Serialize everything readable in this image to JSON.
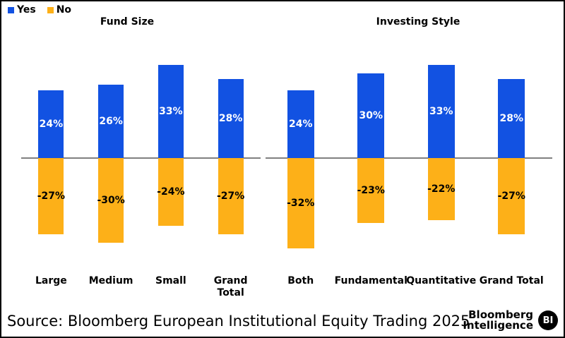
{
  "legend": {
    "items": [
      {
        "label": "Yes",
        "color": "#1252e2"
      },
      {
        "label": "No",
        "color": "#fdb018"
      }
    ]
  },
  "chart_data": {
    "type": "bar",
    "value_unit": "%",
    "zero_baseline": true,
    "grid": false,
    "legend_position": "top-left",
    "ylim": [
      -40,
      40
    ],
    "panels": [
      {
        "title": "Fund Size",
        "categories": [
          "Large",
          "Medium",
          "Small",
          "Grand Total"
        ],
        "series": [
          {
            "name": "Yes",
            "color": "#1252e2",
            "values": [
              24,
              26,
              33,
              28
            ]
          },
          {
            "name": "No",
            "color": "#fdb018",
            "values": [
              -27,
              -30,
              -24,
              -27
            ]
          }
        ]
      },
      {
        "title": "Investing Style",
        "categories": [
          "Both",
          "Fundamental",
          "Quantitative",
          "Grand Total"
        ],
        "series": [
          {
            "name": "Yes",
            "color": "#1252e2",
            "values": [
              24,
              30,
              33,
              28
            ]
          },
          {
            "name": "No",
            "color": "#fdb018",
            "values": [
              -32,
              -23,
              -22,
              -27
            ]
          }
        ]
      }
    ]
  },
  "footer": {
    "source": "Source: Bloomberg European Institutional Equity Trading 2025",
    "brand_line1": "Bloomberg",
    "brand_line2": "Intelligence",
    "badge_label": "BI"
  },
  "colors": {
    "yes": "#1252e2",
    "no": "#fdb018",
    "axis_line": "#808080",
    "background": "#ffffff",
    "border": "#000000",
    "label_on_yes": "#ffffff",
    "label_on_no": "#000000"
  }
}
